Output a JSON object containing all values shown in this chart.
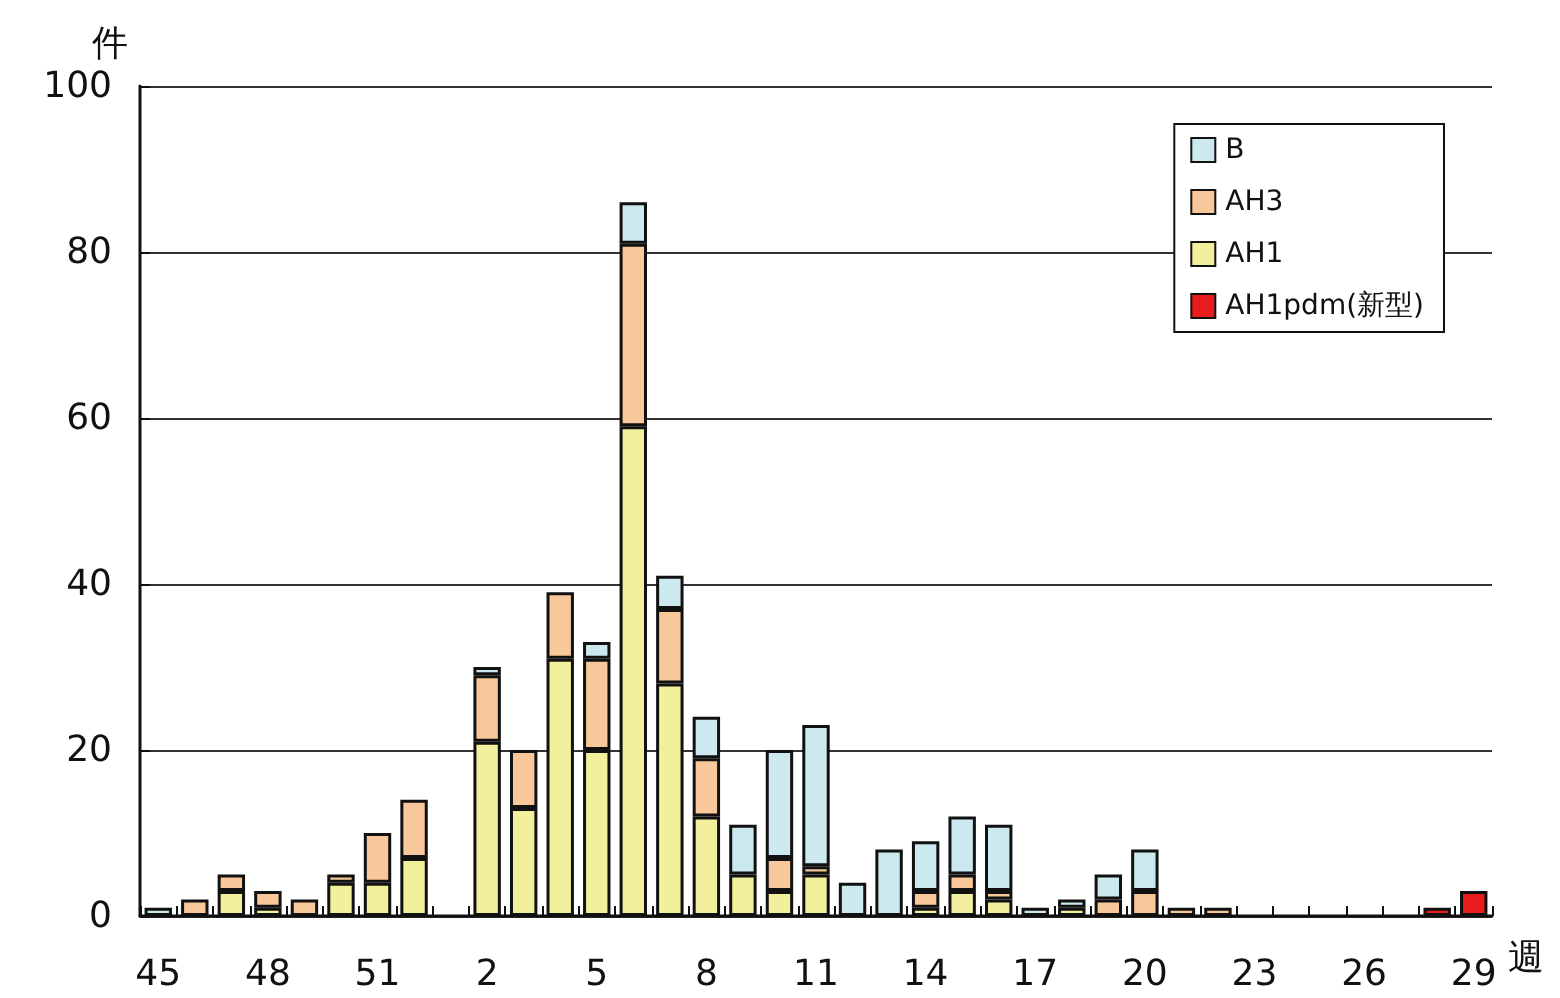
{
  "chart_data": {
    "type": "bar",
    "stacked": true,
    "ylabel": "件",
    "xlabel": "週",
    "categories": [
      "45",
      null,
      null,
      "48",
      null,
      null,
      "51",
      null,
      null,
      "2",
      null,
      null,
      "5",
      null,
      null,
      "8",
      null,
      null,
      "11",
      null,
      null,
      "14",
      null,
      null,
      "17",
      null,
      null,
      "20",
      null,
      null,
      "23",
      null,
      null,
      "26",
      null,
      null,
      "29"
    ],
    "series": [
      {
        "name": "AH1pdm(新型)",
        "color": "#e81c1c",
        "values": [
          0,
          0,
          0,
          0,
          0,
          0,
          0,
          0,
          0,
          0,
          0,
          0,
          0,
          0,
          0,
          0,
          0,
          0,
          0,
          0,
          0,
          0,
          0,
          0,
          0,
          0,
          0,
          0,
          0,
          0,
          0,
          0,
          0,
          0,
          0,
          1,
          3
        ]
      },
      {
        "name": "AH1",
        "color": "#f2f09c",
        "values": [
          0,
          0,
          3,
          1,
          0,
          4,
          4,
          7,
          0,
          21,
          13,
          31,
          20,
          59,
          28,
          12,
          5,
          3,
          5,
          0,
          0,
          1,
          3,
          2,
          0,
          1,
          0,
          0,
          0,
          0,
          0,
          0,
          0,
          0,
          0,
          0,
          0
        ]
      },
      {
        "name": "AH3",
        "color": "#f8c89a",
        "values": [
          0,
          2,
          2,
          2,
          2,
          1,
          6,
          7,
          0,
          8,
          7,
          8,
          11,
          22,
          9,
          7,
          0,
          4,
          1,
          0,
          0,
          2,
          2,
          1,
          0,
          0,
          2,
          3,
          1,
          1,
          0,
          0,
          0,
          0,
          0,
          0,
          0
        ]
      },
      {
        "name": "B",
        "color": "#cde9f0",
        "values": [
          1,
          0,
          0,
          0,
          0,
          0,
          0,
          0,
          0,
          1,
          0,
          0,
          2,
          5,
          4,
          5,
          6,
          13,
          17,
          4,
          8,
          6,
          7,
          8,
          1,
          1,
          3,
          5,
          0,
          0,
          0,
          0,
          0,
          0,
          0,
          0,
          0
        ]
      }
    ],
    "ylim": [
      0,
      100
    ],
    "yticks": [
      0,
      20,
      40,
      60,
      80,
      100
    ],
    "grid": "y",
    "legend": "top right"
  }
}
